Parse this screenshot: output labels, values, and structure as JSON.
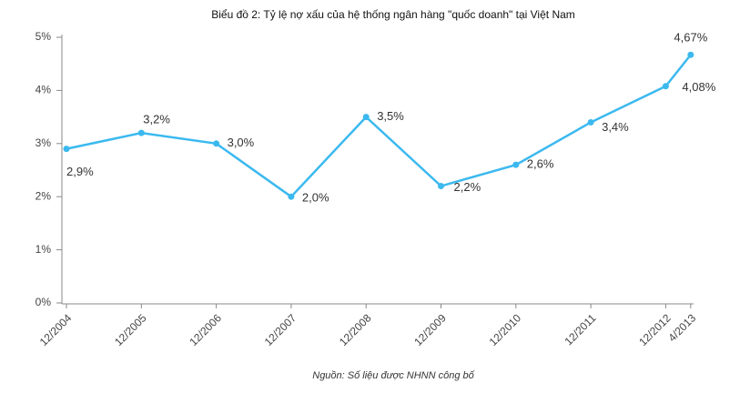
{
  "chart_data": {
    "type": "line",
    "title": "Biểu đồ 2: Tỷ lệ nợ xấu của hệ thống ngân hàng \"quốc doanh\"  tại Việt Nam",
    "source": "Nguồn: Số liệu được NHNN công bố",
    "categories": [
      "12/2004",
      "12/2005",
      "12/2006",
      "12/2007",
      "12/2008",
      "12/2009",
      "12/2010",
      "12/2011",
      "12/2012",
      "4/2013"
    ],
    "series": [
      {
        "name": "Tỷ lệ nợ xấu",
        "color": "#3bb9ef",
        "values": [
          2.9,
          3.2,
          3.0,
          2.0,
          3.5,
          2.2,
          2.6,
          3.4,
          4.08,
          4.67
        ],
        "value_labels": [
          "2,9%",
          "3,2%",
          "3,0%",
          "2,0%",
          "3,5%",
          "2,2%",
          "2,6%",
          "3,4%",
          "4,08%",
          "4,67%"
        ]
      }
    ],
    "ylim": [
      0,
      5
    ],
    "yticks": [
      {
        "value": 0,
        "label": "0%"
      },
      {
        "value": 1,
        "label": "1%"
      },
      {
        "value": 2,
        "label": "2%"
      },
      {
        "value": 3,
        "label": "3%"
      },
      {
        "value": 4,
        "label": "4%"
      },
      {
        "value": 5,
        "label": "5%"
      }
    ],
    "grid": false
  }
}
